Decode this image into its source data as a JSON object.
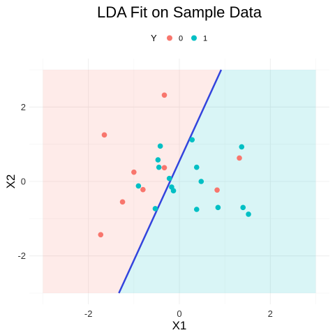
{
  "chart_data": {
    "type": "scatter",
    "title": "LDA Fit on Sample Data",
    "xlabel": "X1",
    "ylabel": "X2",
    "xlim": [
      -3.3,
      3.3
    ],
    "ylim": [
      -3.3,
      3.3
    ],
    "x_ticks": [
      -2,
      0,
      2
    ],
    "y_ticks": [
      -2,
      0,
      2
    ],
    "grid": true,
    "legend": {
      "title": "Y",
      "placement": "top",
      "entries": [
        {
          "label": "0",
          "color": "#F8766D"
        },
        {
          "label": "1",
          "color": "#00BFC4"
        }
      ]
    },
    "regions": {
      "extent": {
        "x": [
          -3,
          3
        ],
        "y": [
          -3,
          3
        ]
      },
      "class_0_fill": "#F8766D",
      "class_1_fill": "#00BFC4",
      "opacity": 0.15
    },
    "decision_boundary": {
      "points": [
        [
          -1.33,
          -3.0
        ],
        [
          0.92,
          3.0
        ]
      ],
      "color": "#3344dd"
    },
    "series": [
      {
        "name": "0",
        "color": "#F8766D",
        "points": [
          [
            -0.33,
            2.32
          ],
          [
            -1.65,
            1.25
          ],
          [
            -1.0,
            0.25
          ],
          [
            -0.33,
            0.37
          ],
          [
            -0.8,
            -0.22
          ],
          [
            -1.25,
            -0.55
          ],
          [
            -1.73,
            -1.43
          ],
          [
            1.32,
            0.63
          ],
          [
            0.83,
            -0.23
          ]
        ]
      },
      {
        "name": "1",
        "color": "#00BFC4",
        "points": [
          [
            0.28,
            1.12
          ],
          [
            -0.42,
            0.95
          ],
          [
            1.37,
            0.93
          ],
          [
            -0.47,
            0.58
          ],
          [
            -0.45,
            0.38
          ],
          [
            0.38,
            0.38
          ],
          [
            -0.22,
            0.08
          ],
          [
            0.48,
            0.0
          ],
          [
            -0.9,
            -0.12
          ],
          [
            -0.17,
            -0.15
          ],
          [
            -0.13,
            -0.25
          ],
          [
            -0.53,
            -0.73
          ],
          [
            0.38,
            -0.75
          ],
          [
            0.85,
            -0.7
          ],
          [
            1.4,
            -0.7
          ],
          [
            1.52,
            -0.88
          ]
        ]
      }
    ]
  }
}
